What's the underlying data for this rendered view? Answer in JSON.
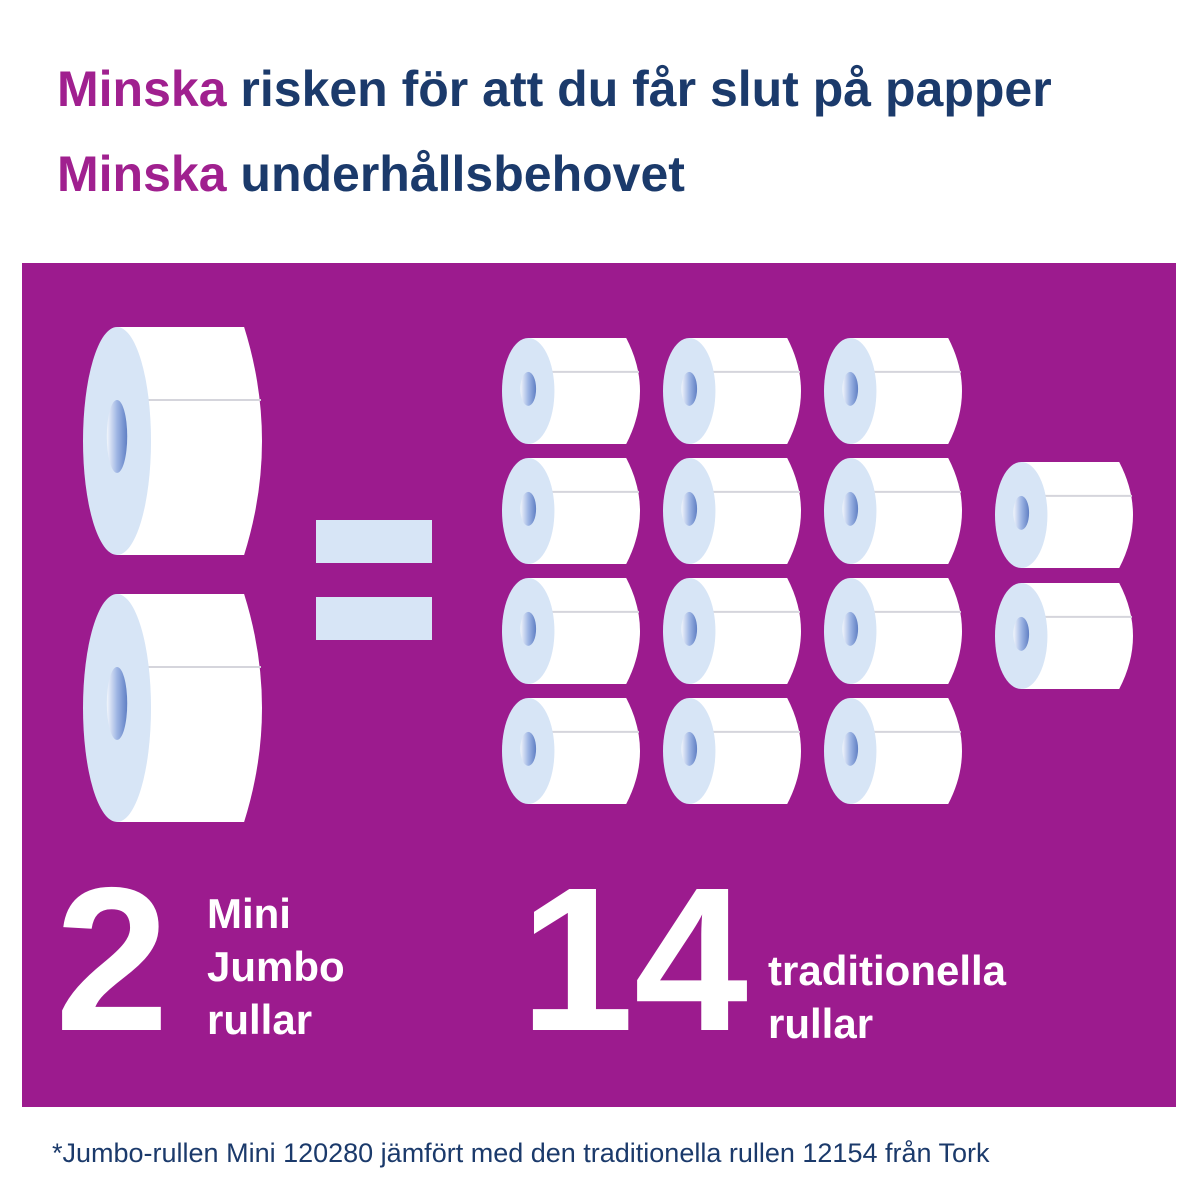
{
  "headings": [
    {
      "accent": "Minska",
      "rest": " risken för att du får slut på papper"
    },
    {
      "accent": "Minska",
      "rest": " underhållsbehovet"
    }
  ],
  "comparison": {
    "left": {
      "count": "2",
      "label_lines": [
        "Mini",
        "Jumbo",
        "rullar"
      ],
      "roll_icons": 2
    },
    "right": {
      "count": "14",
      "label_lines": [
        "traditionella",
        "rullar"
      ],
      "roll_icons": 14
    },
    "operator": "="
  },
  "footnote": "*Jumbo-rullen Mini 120280 jämfört med den traditionella rullen 12154 från Tork",
  "colors": {
    "accent": "#a0208f",
    "navy": "#1b3a6b",
    "panel": "#9c1b8e",
    "roll_side": "#d7e5f6",
    "hole": "#6f8fd0"
  }
}
